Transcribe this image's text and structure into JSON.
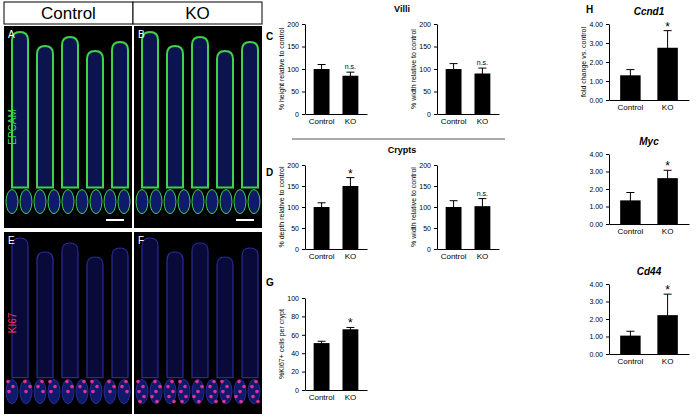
{
  "figure": {
    "headers": [
      "Control",
      "KO"
    ],
    "images": [
      {
        "letter": "A",
        "stain": "EPCAM"
      },
      {
        "letter": "B"
      },
      {
        "letter": "E",
        "stain": "KI67"
      },
      {
        "letter": "F"
      }
    ],
    "panels": [
      {
        "letter": "C",
        "title": "Villi"
      },
      {
        "letter": "D",
        "title": "Crypts"
      },
      {
        "letter": "G"
      },
      {
        "letter": "H"
      }
    ]
  },
  "chart_data": [
    {
      "type": "bar",
      "ylabel": "% height relative to control",
      "categories": [
        "Control",
        "KO"
      ],
      "values": [
        100,
        85
      ],
      "errors": [
        10,
        8
      ],
      "color": "#000000",
      "ylim": [
        0,
        200
      ],
      "yticks": [
        0,
        50,
        100,
        150,
        200
      ],
      "annotations": [
        {
          "text": "n.s.",
          "category": "KO"
        }
      ]
    },
    {
      "type": "bar",
      "ylabel": "% width relative to control",
      "categories": [
        "Control",
        "KO"
      ],
      "values": [
        100,
        90
      ],
      "errors": [
        12,
        12
      ],
      "color": "#000000",
      "ylim": [
        0,
        200
      ],
      "yticks": [
        0,
        50,
        100,
        150,
        200
      ],
      "annotations": [
        {
          "text": "n.s.",
          "category": "KO"
        }
      ]
    },
    {
      "type": "bar",
      "ylabel": "% depth relative to control",
      "categories": [
        "Control",
        "KO"
      ],
      "values": [
        100,
        150
      ],
      "errors": [
        10,
        20
      ],
      "color": "#000000",
      "ylim": [
        0,
        200
      ],
      "yticks": [
        0,
        50,
        100,
        150,
        200
      ],
      "annotations": [
        {
          "text": "*",
          "category": "KO"
        }
      ]
    },
    {
      "type": "bar",
      "ylabel": "% width relative to control",
      "categories": [
        "Control",
        "KO"
      ],
      "values": [
        100,
        102
      ],
      "errors": [
        15,
        18
      ],
      "color": "#000000",
      "ylim": [
        0,
        200
      ],
      "yticks": [
        0,
        50,
        100,
        150,
        200
      ],
      "annotations": [
        {
          "text": "n.s.",
          "category": "KO"
        }
      ]
    },
    {
      "type": "bar",
      "ylabel": "%KI67+ cells per crypt",
      "categories": [
        "Control",
        "KO"
      ],
      "values": [
        51,
        66
      ],
      "errors": [
        2,
        2
      ],
      "color": "#000000",
      "ylim": [
        0,
        100
      ],
      "yticks": [
        0,
        20,
        40,
        60,
        80,
        100
      ],
      "annotations": [
        {
          "text": "*",
          "category": "KO"
        }
      ]
    },
    {
      "type": "bar",
      "title": "Ccnd1",
      "ylabel": "fold change vs. control",
      "categories": [
        "Control",
        "KO"
      ],
      "values": [
        1.3,
        2.75
      ],
      "errors": [
        0.3,
        0.9
      ],
      "color": "#000000",
      "ylim": [
        0,
        4
      ],
      "yticks": [
        {
          "value": 0,
          "label": "0.00"
        },
        {
          "value": 1,
          "label": "1.00"
        },
        {
          "value": 2,
          "label": "2.00"
        },
        {
          "value": 3,
          "label": "3.00"
        },
        {
          "value": 4,
          "label": "4.00"
        }
      ],
      "annotations": [
        {
          "text": "*",
          "category": "KO"
        }
      ]
    },
    {
      "type": "bar",
      "title": "Myc",
      "categories": [
        "Control",
        "KO"
      ],
      "values": [
        1.35,
        2.62
      ],
      "errors": [
        0.45,
        0.45
      ],
      "color": "#000000",
      "ylim": [
        0,
        4
      ],
      "yticks": [
        {
          "value": 0,
          "label": "0.00"
        },
        {
          "value": 1,
          "label": "1.00"
        },
        {
          "value": 2,
          "label": "2.00"
        },
        {
          "value": 3,
          "label": "3.00"
        },
        {
          "value": 4,
          "label": "4.00"
        }
      ],
      "annotations": [
        {
          "text": "*",
          "category": "KO"
        }
      ]
    },
    {
      "type": "bar",
      "title": "Cd44",
      "categories": [
        "Control",
        "KO"
      ],
      "values": [
        1.05,
        2.22
      ],
      "errors": [
        0.25,
        1.2
      ],
      "color": "#000000",
      "ylim": [
        0,
        4
      ],
      "yticks": [
        {
          "value": 0,
          "label": "0.00"
        },
        {
          "value": 1,
          "label": "1.00"
        },
        {
          "value": 2,
          "label": "2.00"
        },
        {
          "value": 3,
          "label": "3.00"
        },
        {
          "value": 4,
          "label": "4.00"
        }
      ],
      "annotations": [
        {
          "text": "*",
          "category": "KO"
        }
      ]
    }
  ]
}
